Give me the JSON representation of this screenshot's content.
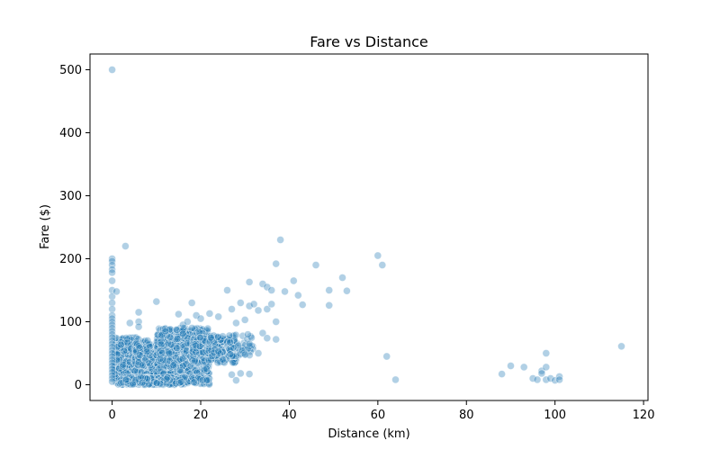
{
  "chart_data": {
    "type": "scatter",
    "title": "Fare vs Distance",
    "xlabel": "Distance (km)",
    "ylabel": "Fare ($)",
    "xlim": [
      -5,
      121
    ],
    "ylim": [
      -25,
      525
    ],
    "xticks": [
      0,
      20,
      40,
      60,
      80,
      100,
      120
    ],
    "yticks": [
      0,
      100,
      200,
      300,
      400,
      500
    ],
    "grid": false,
    "legend": "none",
    "series": [
      {
        "color": "#1f77b4",
        "opacity": 0.35,
        "points": [
          [
            0,
            500
          ],
          [
            0,
            200
          ],
          [
            0,
            196
          ],
          [
            0,
            190
          ],
          [
            0,
            183
          ],
          [
            0,
            178
          ],
          [
            0,
            165
          ],
          [
            0,
            150
          ],
          [
            0,
            140
          ],
          [
            0,
            130
          ],
          [
            0,
            120
          ],
          [
            0,
            110
          ],
          [
            0,
            105
          ],
          [
            0,
            100
          ],
          [
            0,
            95
          ],
          [
            0,
            90
          ],
          [
            0,
            85
          ],
          [
            0,
            80
          ],
          [
            0,
            75
          ],
          [
            0,
            70
          ],
          [
            0,
            65
          ],
          [
            0,
            60
          ],
          [
            0,
            55
          ],
          [
            0,
            50
          ],
          [
            0,
            45
          ],
          [
            0,
            40
          ],
          [
            0,
            35
          ],
          [
            0,
            30
          ],
          [
            0,
            25
          ],
          [
            0,
            20
          ],
          [
            0,
            15
          ],
          [
            0,
            10
          ],
          [
            0,
            5
          ],
          [
            1,
            148
          ],
          [
            3,
            220
          ],
          [
            4,
            98
          ],
          [
            6,
            115
          ],
          [
            6,
            100
          ],
          [
            6,
            92
          ],
          [
            10,
            132
          ],
          [
            8,
            70
          ],
          [
            12,
            85
          ],
          [
            15,
            112
          ],
          [
            16,
            95
          ],
          [
            17,
            100
          ],
          [
            18,
            130
          ],
          [
            19,
            110
          ],
          [
            20,
            105
          ],
          [
            22,
            113
          ],
          [
            24,
            108
          ],
          [
            26,
            150
          ],
          [
            27,
            120
          ],
          [
            28,
            98
          ],
          [
            29,
            130
          ],
          [
            30,
            103
          ],
          [
            31,
            125
          ],
          [
            31,
            163
          ],
          [
            32,
            128
          ],
          [
            33,
            118
          ],
          [
            34,
            160
          ],
          [
            35,
            155
          ],
          [
            35,
            120
          ],
          [
            36,
            150
          ],
          [
            37,
            192
          ],
          [
            38,
            230
          ],
          [
            36,
            128
          ],
          [
            37,
            100
          ],
          [
            39,
            148
          ],
          [
            41,
            165
          ],
          [
            42,
            142
          ],
          [
            43,
            127
          ],
          [
            46,
            190
          ],
          [
            49,
            150
          ],
          [
            49,
            126
          ],
          [
            52,
            170
          ],
          [
            53,
            149
          ],
          [
            34,
            82
          ],
          [
            35,
            74
          ],
          [
            37,
            72
          ],
          [
            33,
            50
          ],
          [
            30,
            48
          ],
          [
            31,
            65
          ],
          [
            29,
            18
          ],
          [
            31,
            17
          ],
          [
            27,
            16
          ],
          [
            28,
            7
          ],
          [
            25,
            40
          ],
          [
            60,
            205
          ],
          [
            61,
            190
          ],
          [
            62,
            45
          ],
          [
            64,
            8
          ],
          [
            88,
            17
          ],
          [
            90,
            30
          ],
          [
            93,
            28
          ],
          [
            95,
            10
          ],
          [
            96,
            8
          ],
          [
            97,
            22
          ],
          [
            97,
            18
          ],
          [
            98,
            8
          ],
          [
            98,
            28
          ],
          [
            98,
            50
          ],
          [
            99,
            10
          ],
          [
            100,
            7
          ],
          [
            101,
            13
          ],
          [
            101,
            8
          ],
          [
            115,
            61
          ]
        ],
        "clusters": [
          {
            "x": [
              0.5,
              6
            ],
            "y": [
              0,
              75
            ],
            "n": 360
          },
          {
            "x": [
              5,
              14
            ],
            "y": [
              0,
              70
            ],
            "n": 420
          },
          {
            "x": [
              10,
              22
            ],
            "y": [
              10,
              90
            ],
            "n": 480
          },
          {
            "x": [
              18,
              28
            ],
            "y": [
              35,
              75
            ],
            "n": 200
          },
          {
            "x": [
              22,
              32
            ],
            "y": [
              45,
              80
            ],
            "n": 80
          },
          {
            "x": [
              2,
              22
            ],
            "y": [
              0,
              12
            ],
            "n": 220
          }
        ]
      }
    ]
  }
}
